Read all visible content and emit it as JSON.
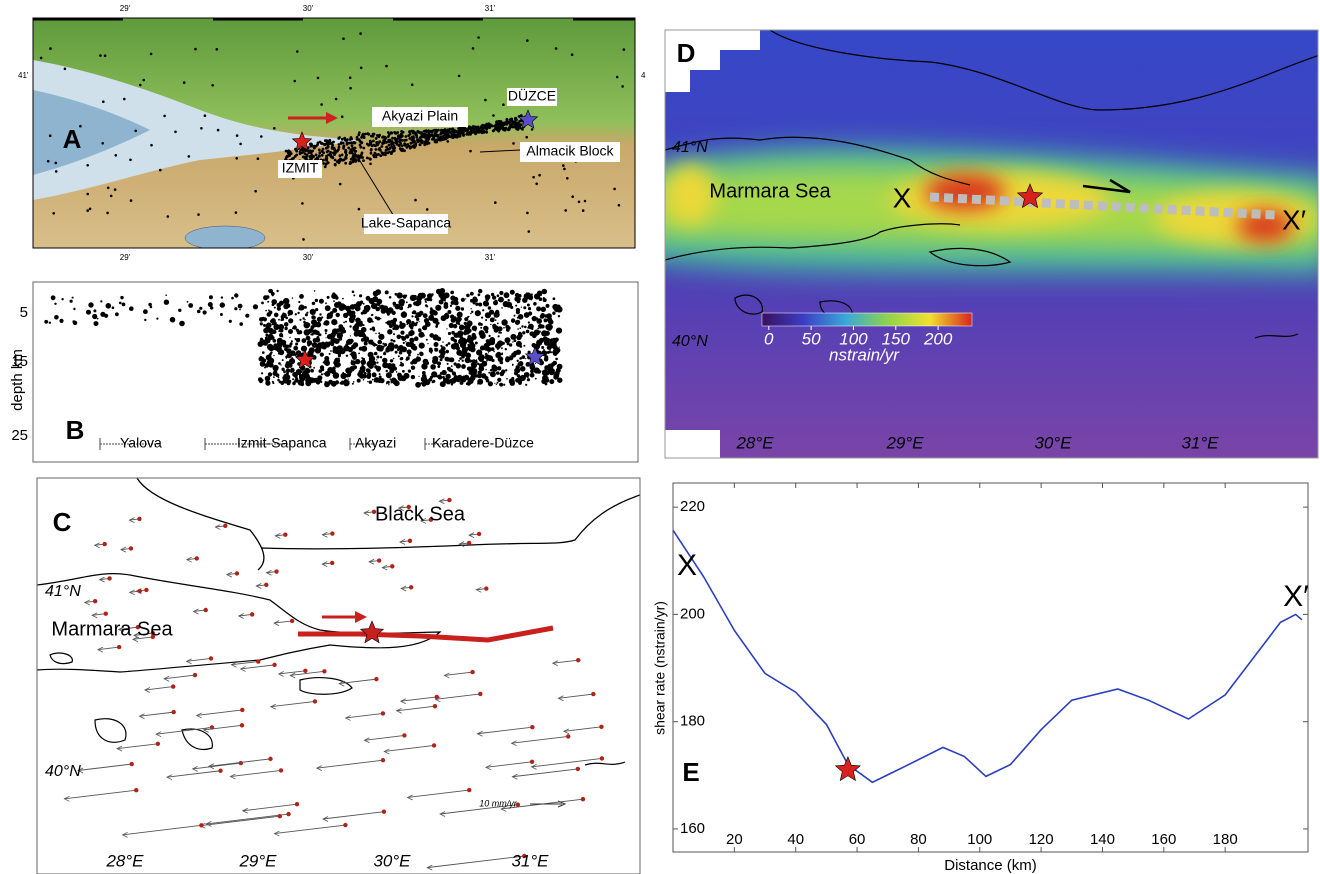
{
  "panel_a": {
    "label": "A",
    "top_ticks": [
      "29'",
      "30'",
      "31'"
    ],
    "bottom_ticks": [
      "29'",
      "30'",
      "31'"
    ],
    "left_tick": "41'",
    "right_tick": "4",
    "places": {
      "akyazi": "Akyazi Plain",
      "duzce": "DÜZCE",
      "izmit": "IZMIT",
      "almacik": "Almacik Block",
      "sapanca": "Lake-Sapanca"
    }
  },
  "panel_b": {
    "label": "B",
    "axis_label": "depth km",
    "depth_ticks": [
      "5",
      "15",
      "25"
    ],
    "segments": [
      "Yalova",
      "Izmit-Sapanca",
      "Akyazi",
      "Karadere-Düzce"
    ]
  },
  "panel_c": {
    "label": "C",
    "black_sea": "Black Sea",
    "marmara_sea": "Marmara Sea",
    "lat_labels": [
      "41°N",
      "40°N"
    ],
    "lon_labels": [
      "28°E",
      "29°E",
      "30°E",
      "31°E"
    ],
    "scale": "10 mm/yr"
  },
  "panel_d": {
    "label": "D",
    "marmara_sea": "Marmara Sea",
    "x_start": "X",
    "x_end": "X′",
    "lat_labels": [
      "41°N",
      "40°N"
    ],
    "lon_labels": [
      "28°E",
      "29°E",
      "30°E",
      "31°E"
    ],
    "colorbar": {
      "ticks": [
        0,
        50,
        100,
        150,
        200
      ],
      "lim": [
        -8,
        240
      ],
      "label": "nstrain/yr"
    }
  },
  "chart_data": {
    "type": "line",
    "panel_label": "E",
    "x_label": "Distance (km)",
    "y_label": "shear rate (nstrain/yr)",
    "x": [
      0,
      10,
      20,
      30,
      40,
      50,
      57,
      65,
      75,
      88,
      95,
      102,
      110,
      120,
      130,
      145,
      155,
      168,
      180,
      190,
      198,
      203,
      205
    ],
    "values": [
      215.7,
      207,
      197,
      189,
      185.5,
      179.5,
      172,
      168.7,
      171.5,
      175.2,
      173.5,
      169.8,
      172,
      178.5,
      184,
      186.1,
      184,
      180.5,
      185,
      192.5,
      198.5,
      200,
      199
    ],
    "color": "#2b3fbf",
    "xlim": [
      0,
      207
    ],
    "ylim": [
      155.7,
      224.5
    ],
    "xticks": [
      20,
      40,
      60,
      80,
      100,
      120,
      140,
      160,
      180
    ],
    "yticks": [
      160,
      180,
      200,
      220
    ],
    "annotations": {
      "start": "X",
      "end": "X′"
    },
    "marker": {
      "x": 57,
      "y": 171
    }
  }
}
